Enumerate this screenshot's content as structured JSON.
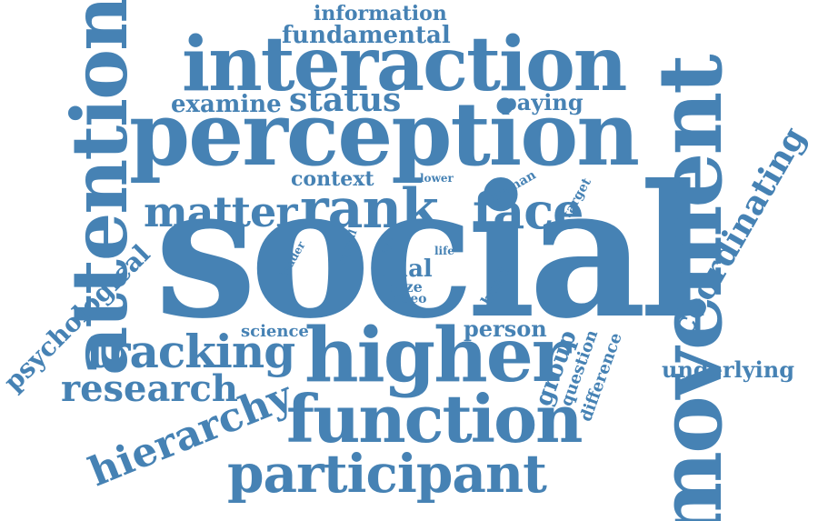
{
  "color": "#4682b4",
  "words": [
    {
      "id": "social",
      "text": "social"
    },
    {
      "id": "perception",
      "text": "perception"
    },
    {
      "id": "interaction",
      "text": "interaction"
    },
    {
      "id": "movement",
      "text": "movement"
    },
    {
      "id": "attention",
      "text": "attention"
    },
    {
      "id": "higher",
      "text": "higher"
    },
    {
      "id": "function",
      "text": "function"
    },
    {
      "id": "participant",
      "text": "participant"
    },
    {
      "id": "tracking",
      "text": "tracking"
    },
    {
      "id": "rank",
      "text": "rank"
    },
    {
      "id": "matter",
      "text": "matter"
    },
    {
      "id": "face",
      "text": "face"
    },
    {
      "id": "coordinating",
      "text": "coordinating"
    },
    {
      "id": "hierarchy",
      "text": "hierarchy"
    },
    {
      "id": "research",
      "text": "research"
    },
    {
      "id": "psychological",
      "text": "psychological"
    },
    {
      "id": "status",
      "text": "status"
    },
    {
      "id": "examine",
      "text": "examine"
    },
    {
      "id": "fundamental",
      "text": "fundamental"
    },
    {
      "id": "information",
      "text": "information"
    },
    {
      "id": "paying",
      "text": "paying"
    },
    {
      "id": "context",
      "text": "context"
    },
    {
      "id": "underlying",
      "text": "underlying"
    },
    {
      "id": "dual",
      "text": "dual"
    },
    {
      "id": "person",
      "text": "person"
    },
    {
      "id": "group",
      "text": "group"
    },
    {
      "id": "question",
      "text": "question"
    },
    {
      "id": "difference",
      "text": "difference"
    },
    {
      "id": "science",
      "text": "science"
    },
    {
      "id": "gaze",
      "text": "gaze"
    },
    {
      "id": "video",
      "text": "video"
    },
    {
      "id": "human",
      "text": "human"
    },
    {
      "id": "target",
      "text": "target"
    },
    {
      "id": "hand",
      "text": "hand"
    },
    {
      "id": "leader",
      "text": "leader"
    },
    {
      "id": "signal",
      "text": "signal"
    },
    {
      "id": "eye",
      "text": "eye"
    },
    {
      "id": "life",
      "text": "life"
    },
    {
      "id": "lower",
      "text": "lower"
    }
  ]
}
